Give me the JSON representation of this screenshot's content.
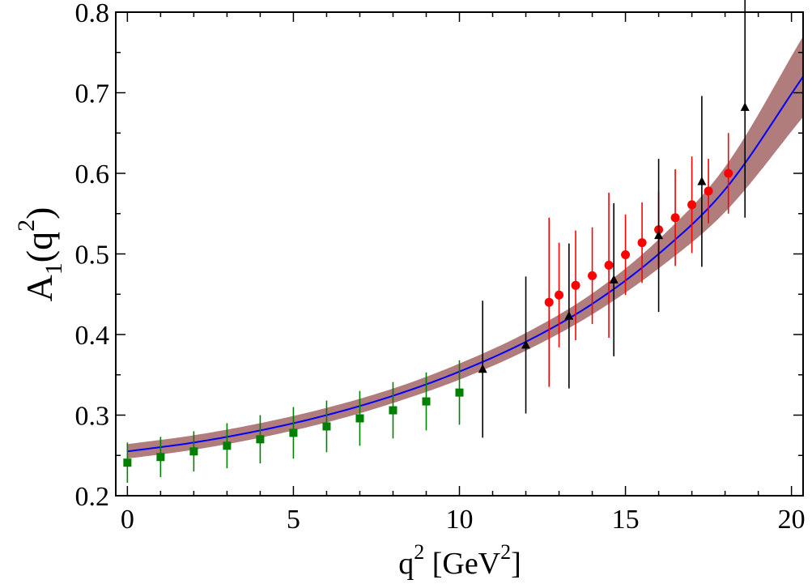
{
  "chart_data": {
    "type": "scatter",
    "title": "",
    "xlabel": {
      "base": "q",
      "sup": "2",
      "unit_open": " [GeV",
      "unit_sup": "2",
      "unit_close": "]"
    },
    "ylabel": {
      "base": "A",
      "sub": "1",
      "open": "(q",
      "sup": "2",
      "close": ")"
    },
    "xlim": [
      -0.35,
      20.35
    ],
    "ylim": [
      0.2,
      0.8
    ],
    "xticks": [
      0,
      5,
      10,
      15,
      20
    ],
    "xtick_labels": [
      "0",
      "5",
      "10",
      "15",
      "20"
    ],
    "yticks": [
      0.2,
      0.3,
      0.4,
      0.5,
      0.6,
      0.7,
      0.8
    ],
    "ytick_labels": [
      "0.2",
      "0.3",
      "0.4",
      "0.5",
      "0.6",
      "0.7",
      "0.8"
    ],
    "grid": false,
    "colors": {
      "fit_line": "#0000ff",
      "error_band": "#b07c7c",
      "green_series": "#008000",
      "red_series": "#ff0000",
      "black_series": "#000000"
    },
    "fit": {
      "x": [
        0,
        2,
        4,
        6,
        8,
        10,
        12,
        14,
        16,
        18,
        20.35
      ],
      "y": [
        0.255,
        0.266,
        0.281,
        0.3,
        0.324,
        0.354,
        0.391,
        0.438,
        0.5,
        0.58,
        0.72
      ],
      "band_halfwidth": [
        0.009,
        0.009,
        0.009,
        0.009,
        0.009,
        0.01,
        0.011,
        0.013,
        0.018,
        0.028,
        0.05
      ]
    },
    "series": [
      {
        "name": "green squares",
        "marker": "square",
        "color": "#008000",
        "x": [
          0,
          1,
          2,
          3,
          4,
          5,
          6,
          7,
          8,
          9,
          10
        ],
        "y": [
          0.241,
          0.248,
          0.255,
          0.262,
          0.27,
          0.278,
          0.286,
          0.296,
          0.306,
          0.317,
          0.328
        ],
        "err": [
          0.025,
          0.025,
          0.025,
          0.028,
          0.03,
          0.032,
          0.032,
          0.034,
          0.035,
          0.036,
          0.04
        ]
      },
      {
        "name": "red circles",
        "marker": "circle",
        "color": "#ff0000",
        "x": [
          12.7,
          13.0,
          13.5,
          14.0,
          14.5,
          15.0,
          15.5,
          16.0,
          16.5,
          17.0,
          17.5,
          18.1
        ],
        "y": [
          0.44,
          0.449,
          0.461,
          0.473,
          0.486,
          0.499,
          0.514,
          0.53,
          0.545,
          0.561,
          0.578,
          0.6
        ],
        "err": [
          0.105,
          0.065,
          0.068,
          0.06,
          0.09,
          0.05,
          0.05,
          0.047,
          0.06,
          0.06,
          0.04,
          0.05
        ]
      },
      {
        "name": "black triangles",
        "marker": "triangle",
        "color": "#000000",
        "x": [
          10.7,
          12.0,
          13.3,
          14.65,
          16.0,
          17.3,
          18.6
        ],
        "y": [
          0.357,
          0.387,
          0.423,
          0.468,
          0.523,
          0.59,
          0.682
        ],
        "err": [
          0.085,
          0.085,
          0.09,
          0.095,
          0.095,
          0.106,
          0.137
        ]
      }
    ]
  }
}
